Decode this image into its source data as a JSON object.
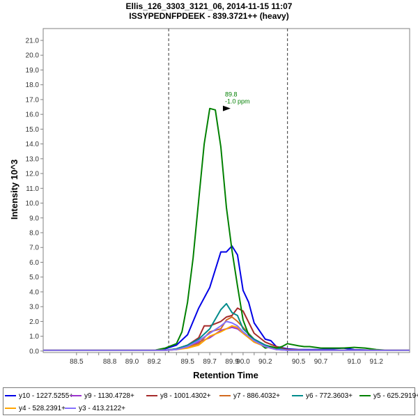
{
  "chart_data": {
    "type": "line",
    "title": "Ellis_126_3303_3121_06, 2014-11-15 11:07",
    "subtitle": "ISSYPEDNFPDEEK - 839.3721++ (heavy)",
    "xlabel": "Retention Time",
    "ylabel": "Intensity 10^3",
    "xlim": [
      88.2,
      91.5
    ],
    "ylim": [
      -0.1,
      21.8
    ],
    "xticks": [
      "88.5",
      "88.6",
      "88.7",
      "88.8",
      "88.9",
      "89.0",
      "89.1",
      "89.2",
      "89.3",
      "89.4",
      "89.5",
      "89.6",
      "89.7",
      "89.8",
      "89.9",
      "90.0",
      "90.1",
      "90.2",
      "90.3",
      "90.4",
      "90.5",
      "90.6",
      "90.7",
      "90.8",
      "90.9",
      "91.0",
      "91.1",
      "91.2",
      "91.3",
      "91.4"
    ],
    "xtick_values": [
      88.5,
      88.6,
      88.7,
      88.8,
      88.9,
      89.0,
      89.1,
      89.2,
      89.3,
      89.4,
      89.5,
      89.6,
      89.7,
      89.8,
      89.9,
      90.0,
      90.1,
      90.2,
      90.3,
      90.4,
      90.5,
      90.6,
      90.7,
      90.8,
      90.9,
      91.0,
      91.1,
      91.2,
      91.3,
      91.4
    ],
    "xtick_labels_shown": [
      "88.5",
      "",
      "",
      "88.8",
      "",
      "89.0",
      "",
      "89.2",
      "",
      "",
      "89.5",
      "",
      "89.7",
      "",
      "89.9",
      "90.0",
      "",
      "90.2",
      "",
      "",
      "90.5",
      "",
      "90.7",
      "",
      "",
      "91.0",
      "",
      "91.2",
      "",
      ""
    ],
    "yticks": [
      "0.0",
      "1.0",
      "2.0",
      "3.0",
      "4.0",
      "5.0",
      "6.0",
      "7.0",
      "8.0",
      "9.0",
      "10.0",
      "11.0",
      "12.0",
      "13.0",
      "14.0",
      "15.0",
      "16.0",
      "17.0",
      "18.0",
      "19.0",
      "20.0",
      "21.0"
    ],
    "grid": false,
    "legend_position": "bottom",
    "boundaries": [
      89.33,
      90.4
    ],
    "annotation": {
      "x": 89.9,
      "y": 16.4,
      "lines": [
        "89.8",
        "-1.0 ppm"
      ],
      "color": "#007f00"
    },
    "series": [
      {
        "name": "y10 - 1227.5255+",
        "color": "#0000e6",
        "x": [
          88.2,
          88.5,
          88.8,
          89.0,
          89.2,
          89.3,
          89.4,
          89.5,
          89.6,
          89.7,
          89.8,
          89.85,
          89.9,
          89.95,
          90.0,
          90.05,
          90.1,
          90.2,
          90.25,
          90.3,
          90.4,
          90.5,
          90.7,
          90.9,
          91.0,
          91.2,
          91.5
        ],
        "y": [
          0.05,
          0.05,
          0.05,
          0.05,
          0.05,
          0.15,
          0.4,
          1.1,
          2.9,
          4.3,
          6.7,
          6.7,
          7.1,
          6.5,
          4.1,
          3.3,
          1.9,
          0.8,
          0.7,
          0.3,
          0.15,
          0.1,
          0.1,
          0.2,
          0.1,
          0.05,
          0.05
        ]
      },
      {
        "name": "y9 - 1130.4728+",
        "color": "#9a32cd",
        "x": [
          88.2,
          89.3,
          89.4,
          89.5,
          89.6,
          89.7,
          89.8,
          89.85,
          89.9,
          89.95,
          90.0,
          90.1,
          90.2,
          90.3,
          90.4,
          90.6,
          91.5
        ],
        "y": [
          0.05,
          0.05,
          0.1,
          0.3,
          0.6,
          0.9,
          1.4,
          1.5,
          1.6,
          1.5,
          1.2,
          0.6,
          0.3,
          0.1,
          0.05,
          0.05,
          0.05
        ]
      },
      {
        "name": "y8 - 1001.4302+",
        "color": "#a52a2a",
        "x": [
          88.2,
          89.3,
          89.4,
          89.5,
          89.6,
          89.65,
          89.7,
          89.8,
          89.85,
          89.9,
          89.95,
          90.0,
          90.1,
          90.2,
          90.3,
          90.4,
          90.6,
          91.5
        ],
        "y": [
          0.05,
          0.05,
          0.15,
          0.4,
          0.9,
          1.7,
          1.7,
          2.0,
          2.3,
          2.4,
          2.9,
          2.7,
          1.2,
          0.6,
          0.3,
          0.1,
          0.05,
          0.05
        ]
      },
      {
        "name": "y7 - 886.4032+",
        "color": "#d2691e",
        "x": [
          88.2,
          89.3,
          89.4,
          89.5,
          89.6,
          89.7,
          89.8,
          89.85,
          89.9,
          89.95,
          90.0,
          90.1,
          90.2,
          90.3,
          90.4,
          90.6,
          91.5
        ],
        "y": [
          0.05,
          0.05,
          0.1,
          0.3,
          0.5,
          1.3,
          1.5,
          2.1,
          2.3,
          2.0,
          1.6,
          0.8,
          0.4,
          0.2,
          0.05,
          0.05,
          0.05
        ]
      },
      {
        "name": "y6 - 772.3603+",
        "color": "#008b8b",
        "x": [
          88.2,
          89.3,
          89.4,
          89.5,
          89.6,
          89.7,
          89.8,
          89.85,
          89.9,
          89.95,
          90.0,
          90.1,
          90.2,
          90.3,
          90.4,
          90.6,
          91.5
        ],
        "y": [
          0.05,
          0.05,
          0.15,
          0.4,
          0.8,
          1.5,
          2.8,
          3.2,
          2.6,
          2.4,
          1.5,
          0.8,
          0.4,
          0.2,
          0.05,
          0.05,
          0.05
        ]
      },
      {
        "name": "y5 - 625.2919+",
        "color": "#008000",
        "x": [
          88.2,
          88.6,
          88.8,
          89.0,
          89.2,
          89.3,
          89.4,
          89.45,
          89.5,
          89.55,
          89.6,
          89.65,
          89.7,
          89.75,
          89.8,
          89.85,
          89.9,
          89.95,
          90.0,
          90.05,
          90.1,
          90.15,
          90.2,
          90.25,
          90.3,
          90.35,
          90.4,
          90.5,
          90.55,
          90.6,
          90.7,
          90.8,
          90.9,
          91.0,
          91.1,
          91.2,
          91.3,
          91.4,
          91.5
        ],
        "y": [
          0.05,
          0.05,
          0.05,
          0.05,
          0.05,
          0.2,
          0.5,
          1.3,
          3.3,
          6.3,
          10.2,
          14.0,
          16.4,
          16.3,
          13.8,
          9.7,
          6.8,
          4.4,
          2.1,
          1.1,
          0.7,
          0.5,
          0.2,
          0.3,
          0.2,
          0.3,
          0.5,
          0.35,
          0.3,
          0.3,
          0.2,
          0.2,
          0.2,
          0.25,
          0.2,
          0.1,
          0.05,
          0.05,
          0.05
        ]
      },
      {
        "name": "y4 - 528.2391+",
        "color": "#ffa500",
        "x": [
          88.2,
          89.3,
          89.4,
          89.5,
          89.6,
          89.7,
          89.8,
          89.85,
          89.9,
          89.95,
          90.0,
          90.1,
          90.2,
          90.3,
          90.4,
          90.6,
          91.5
        ],
        "y": [
          0.05,
          0.05,
          0.1,
          0.2,
          0.4,
          1.0,
          1.3,
          1.5,
          1.7,
          1.6,
          1.2,
          0.6,
          0.3,
          0.1,
          0.05,
          0.05,
          0.05
        ]
      },
      {
        "name": "y3 - 413.2122+",
        "color": "#8470ff",
        "x": [
          88.2,
          89.3,
          89.4,
          89.5,
          89.6,
          89.7,
          89.8,
          89.85,
          89.9,
          89.95,
          90.0,
          90.1,
          90.2,
          90.3,
          90.4,
          90.6,
          91.5
        ],
        "y": [
          0.05,
          0.05,
          0.1,
          0.3,
          0.7,
          1.2,
          1.7,
          2.0,
          1.9,
          1.7,
          1.3,
          0.7,
          0.3,
          0.1,
          0.05,
          0.05,
          0.05
        ]
      }
    ]
  }
}
